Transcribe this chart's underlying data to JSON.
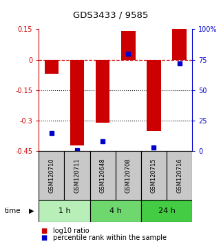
{
  "title": "GDS3433 / 9585",
  "samples": [
    "GSM120710",
    "GSM120711",
    "GSM120648",
    "GSM120708",
    "GSM120715",
    "GSM120716"
  ],
  "log10_ratio": [
    -0.07,
    -0.42,
    -0.31,
    0.14,
    -0.35,
    0.15
  ],
  "percentile_rank": [
    15,
    1,
    8,
    80,
    3,
    72
  ],
  "time_groups": [
    {
      "label": "1 h",
      "cols": [
        0,
        1
      ],
      "color": "#b8efb8"
    },
    {
      "label": "4 h",
      "cols": [
        2,
        3
      ],
      "color": "#6ed86e"
    },
    {
      "label": "24 h",
      "cols": [
        4,
        5
      ],
      "color": "#44cc44"
    }
  ],
  "ylim_left": [
    -0.45,
    0.15
  ],
  "ylim_right": [
    0,
    100
  ],
  "yticks_left": [
    0.15,
    0.0,
    -0.15,
    -0.3,
    -0.45
  ],
  "yticks_left_labels": [
    "0.15",
    "0",
    "-0.15",
    "-0.3",
    "-0.45"
  ],
  "yticks_right": [
    100,
    75,
    50,
    25,
    0
  ],
  "yticks_right_labels": [
    "100%",
    "75",
    "50",
    "25",
    "0"
  ],
  "bar_color": "#cc0000",
  "dot_color": "#0000cc",
  "dashed_line_y": 0.0,
  "dotted_lines": [
    -0.15,
    -0.3
  ],
  "bar_width": 0.55,
  "sample_box_color": "#c8c8c8",
  "legend_red_label": "log10 ratio",
  "legend_blue_label": "percentile rank within the sample"
}
